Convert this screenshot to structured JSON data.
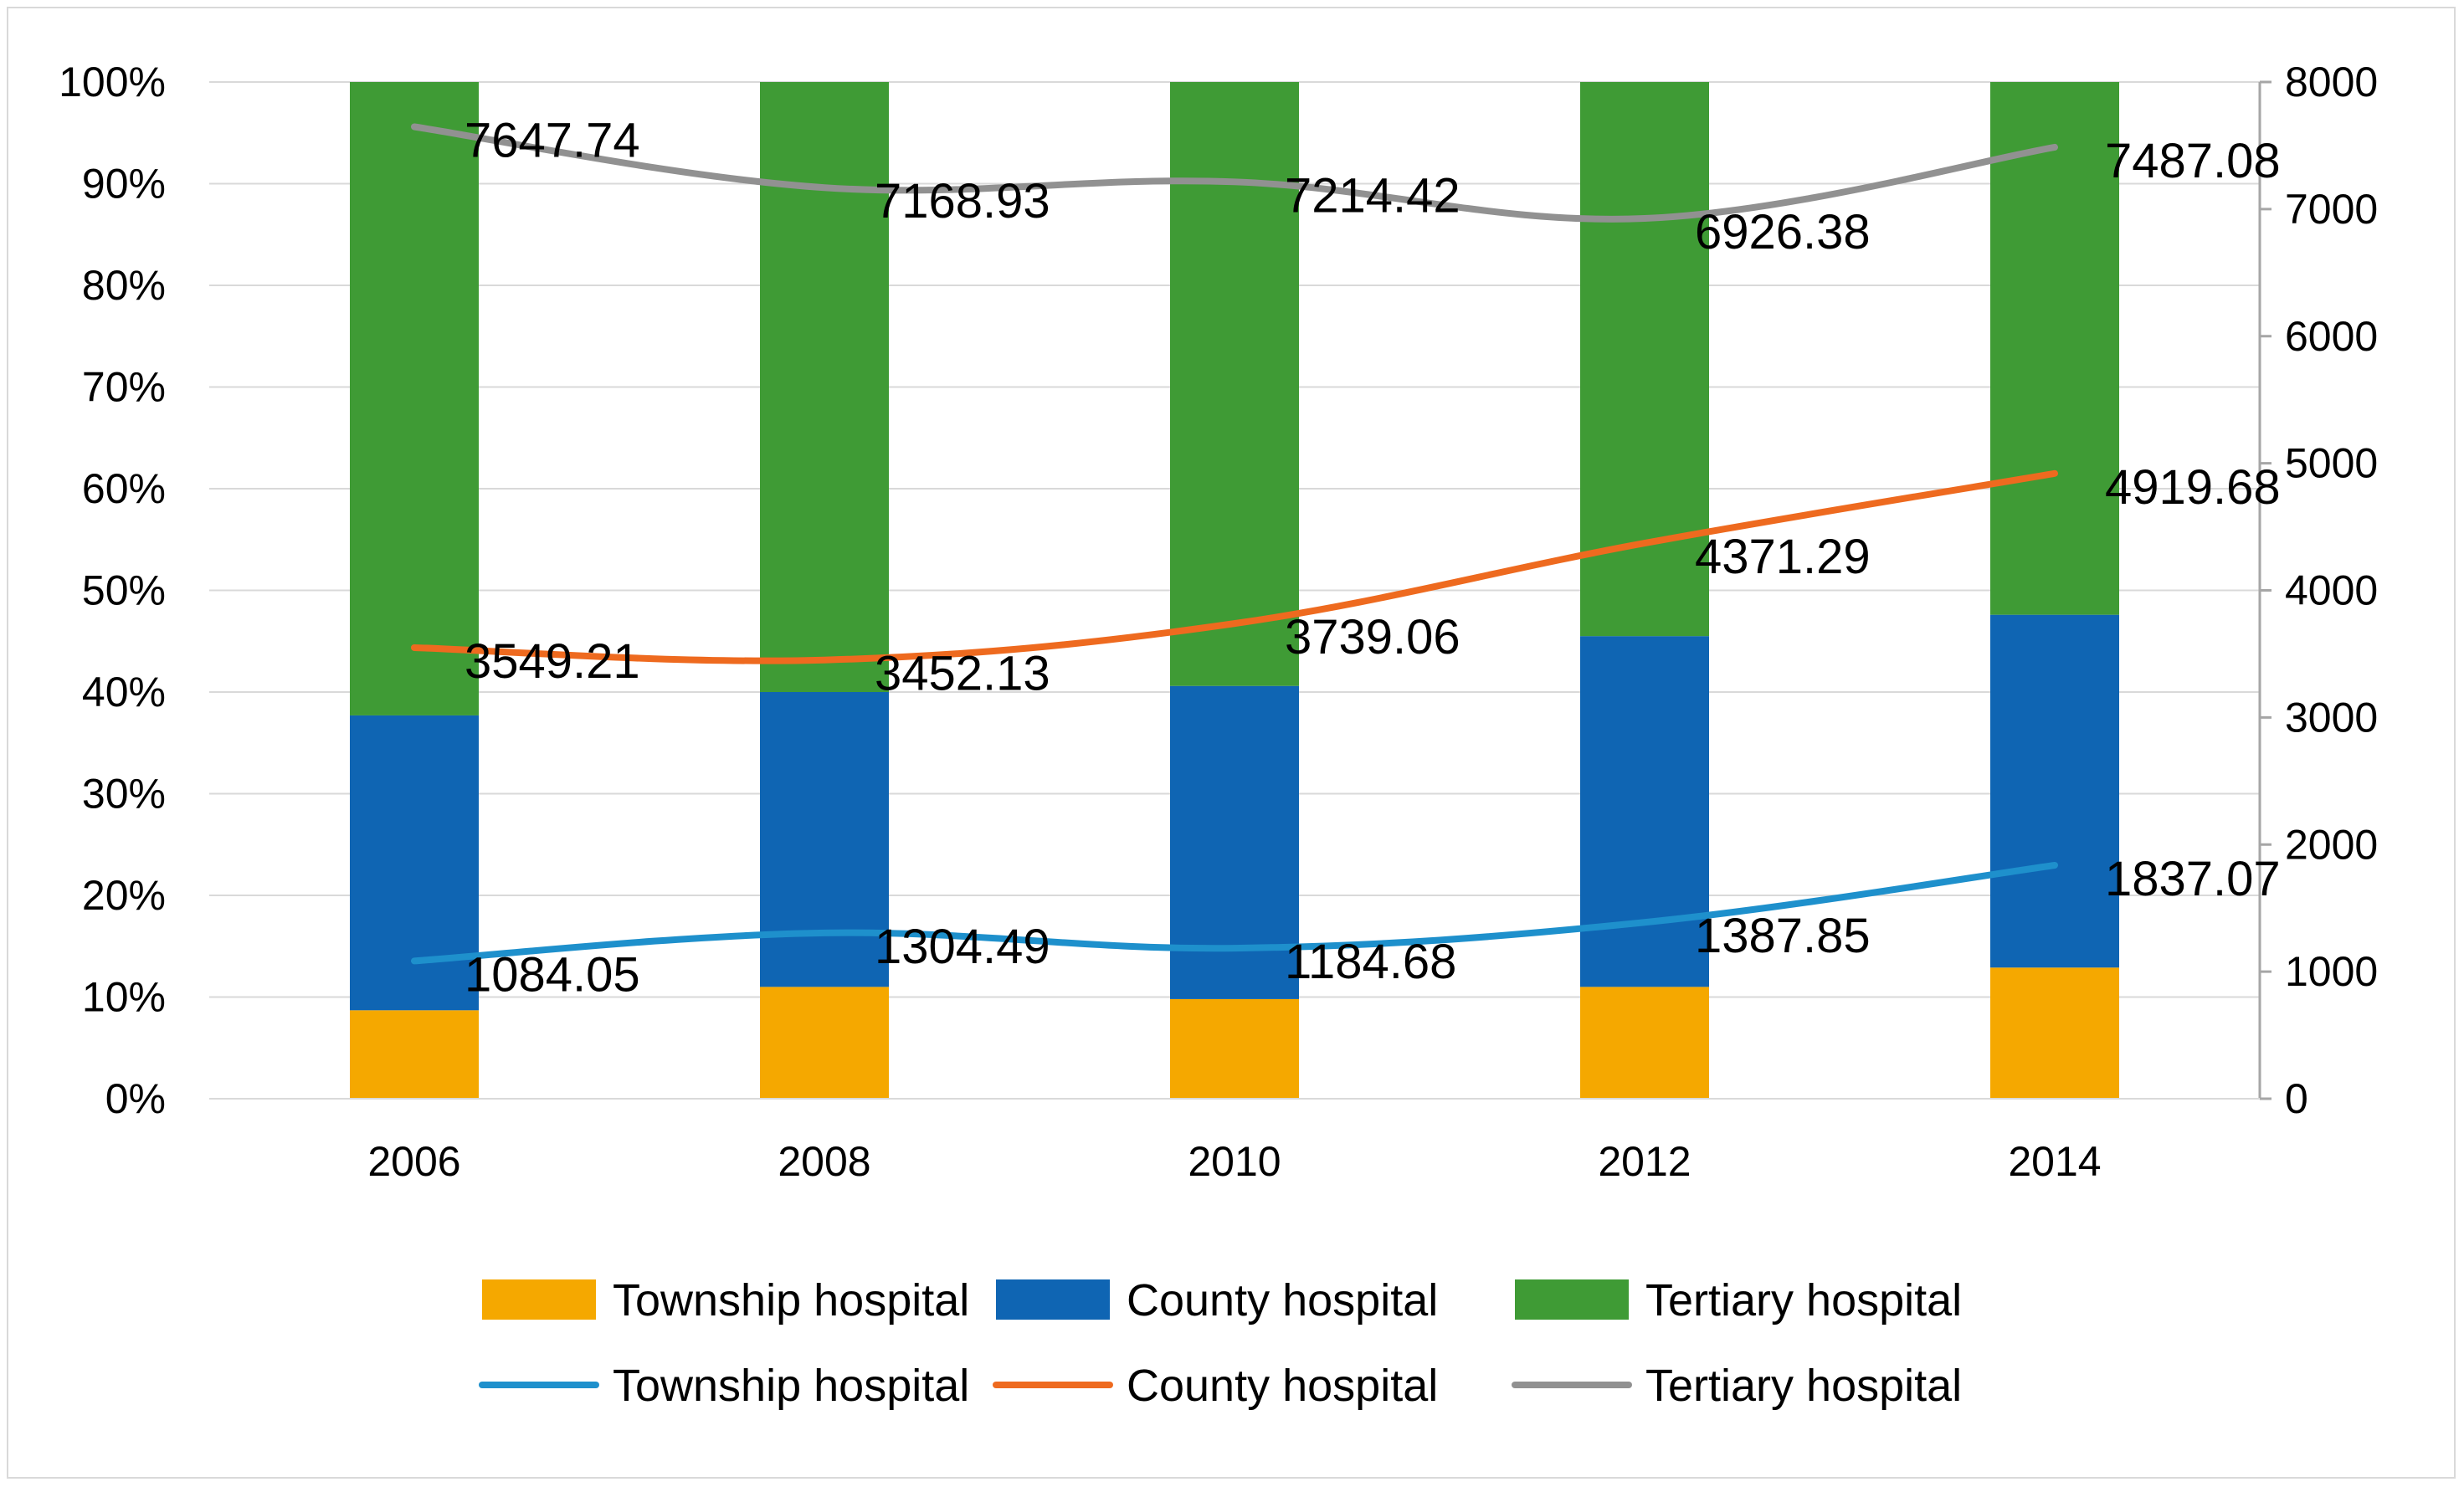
{
  "chart_data": {
    "type": "bar",
    "subtype": "stacked-percent-bar with line overlay on secondary axis",
    "categories": [
      "2006",
      "2008",
      "2010",
      "2012",
      "2014"
    ],
    "bar_series": [
      {
        "name": "Township hospital",
        "color": "#F5A800",
        "values": [
          8.7,
          11.0,
          9.8,
          11.0,
          12.9
        ]
      },
      {
        "name": "County hospital",
        "color": "#0F65B3",
        "values": [
          29.0,
          29.0,
          30.8,
          34.5,
          34.7
        ]
      },
      {
        "name": "Tertiary hospital",
        "color": "#3F9B35",
        "values": [
          62.3,
          60.0,
          59.4,
          54.5,
          52.4
        ]
      }
    ],
    "line_series": [
      {
        "name": "Township hospital",
        "color": "#1E90CC",
        "values": [
          1084.05,
          1304.49,
          1184.68,
          1387.85,
          1837.07
        ],
        "labels": [
          "1084.05",
          "1304.49",
          "1184.68",
          "1387.85",
          "1837.07"
        ]
      },
      {
        "name": "County hospital",
        "color": "#EE6A1F",
        "values": [
          3549.21,
          3452.13,
          3739.06,
          4371.29,
          4919.68
        ],
        "labels": [
          "3549.21",
          "3452.13",
          "3739.06",
          "4371.29",
          "4919.68"
        ]
      },
      {
        "name": "Tertiary hospital",
        "color": "#919191",
        "values": [
          7647.74,
          7168.93,
          7214.42,
          6926.38,
          7487.08
        ],
        "labels": [
          "7647.74",
          "7168.93",
          "7214.42",
          "6926.38",
          "7487.08"
        ]
      }
    ],
    "y_left": {
      "ylim": [
        0,
        100
      ],
      "ticks": [
        "0%",
        "10%",
        "20%",
        "30%",
        "40%",
        "50%",
        "60%",
        "70%",
        "80%",
        "90%",
        "100%"
      ]
    },
    "y_right": {
      "ylim": [
        0,
        8000
      ],
      "ticks": [
        "0",
        "1000",
        "2000",
        "3000",
        "4000",
        "5000",
        "6000",
        "7000",
        "8000"
      ]
    },
    "title": "",
    "xlabel": "",
    "ylabel": "",
    "grid": "horizontal",
    "legend_position": "bottom"
  }
}
